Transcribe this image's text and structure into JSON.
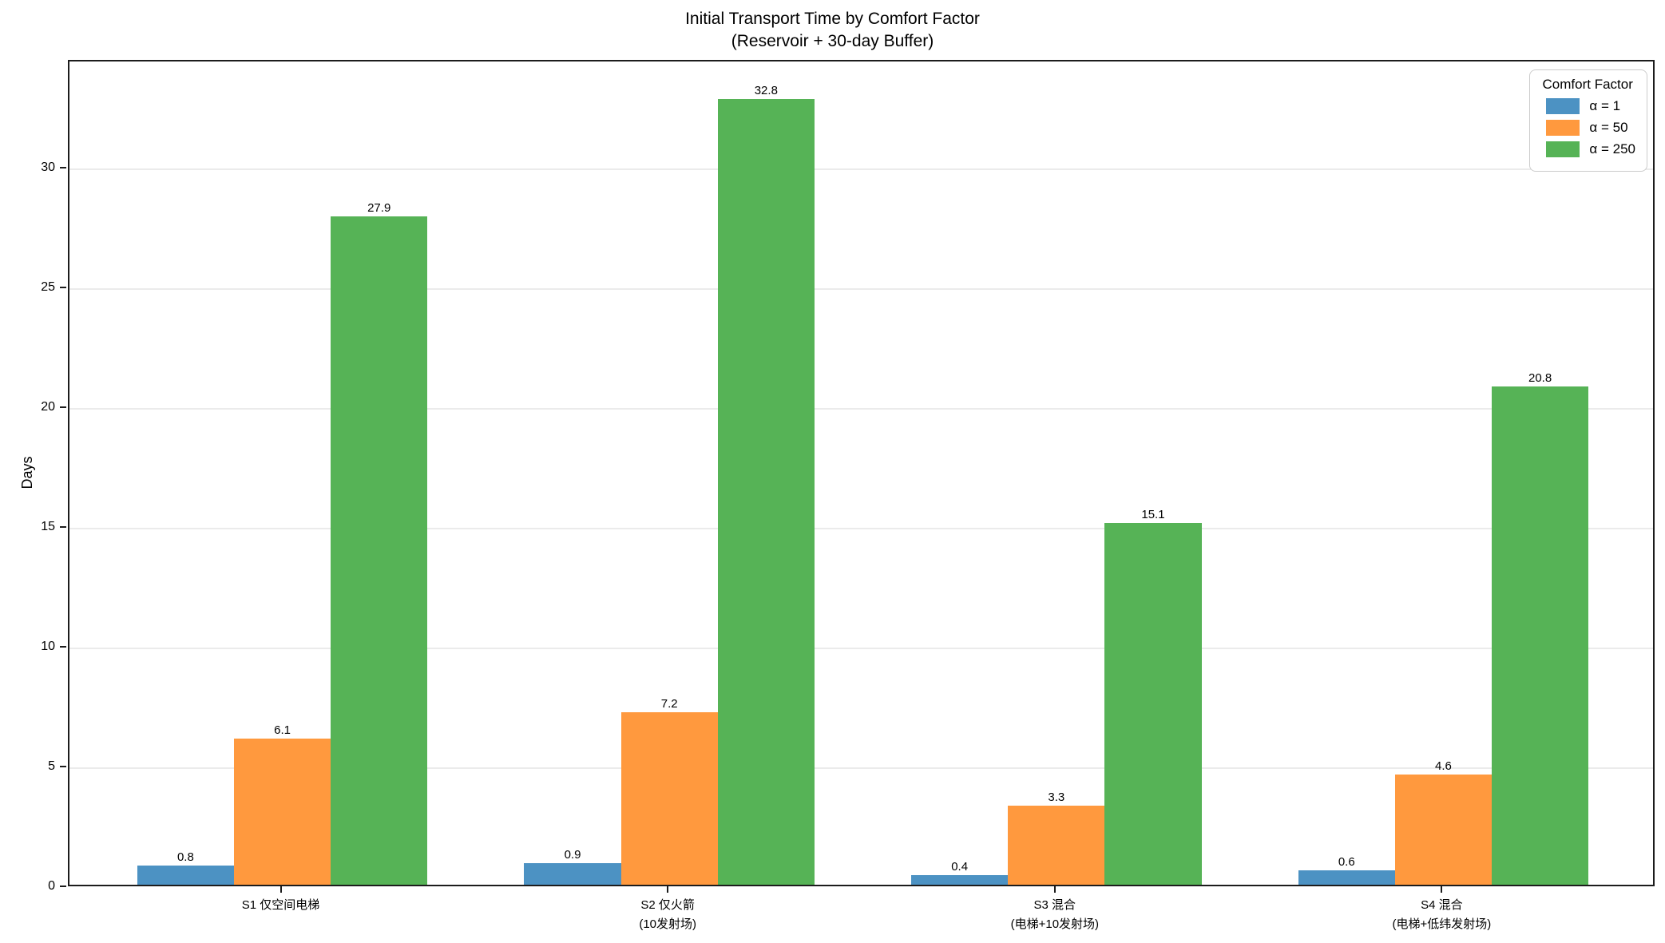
{
  "title": "Initial Transport Time by Comfort Factor",
  "subtitle": "(Reservoir + 30-day Buffer)",
  "chart_data": {
    "type": "bar",
    "categories": [
      "S1 仅空间电梯",
      "S2 仅火箭\n(10发射场)",
      "S3 混合\n(电梯+10发射场)",
      "S4 混合\n(电梯+低纬发射场)"
    ],
    "series": [
      {
        "name": "α = 1",
        "color": "#4C92C3",
        "values": [
          0.8,
          0.9,
          0.4,
          0.6
        ]
      },
      {
        "name": "α = 50",
        "color": "#FF993E",
        "values": [
          6.1,
          7.2,
          3.3,
          4.6
        ]
      },
      {
        "name": "α = 250",
        "color": "#56B356",
        "values": [
          27.9,
          32.8,
          15.1,
          20.8
        ]
      }
    ],
    "bar_labels": [
      [
        "0.8",
        "0.9",
        "0.4",
        "0.6"
      ],
      [
        "6.1",
        "7.2",
        "3.3",
        "4.6"
      ],
      [
        "27.9",
        "32.8",
        "15.1",
        "20.8"
      ]
    ],
    "xlabel": "",
    "ylabel": "Days",
    "yticks": [
      0,
      5,
      10,
      15,
      20,
      25,
      30
    ],
    "ylim": [
      0,
      34.5
    ],
    "grid": true,
    "legend_title": "Comfort Factor",
    "legend_position": "upper right",
    "colors": {
      "grid": "#ebebeb",
      "spine": "#1c1c1c",
      "background": "#ffffff",
      "text": "#000000"
    }
  }
}
